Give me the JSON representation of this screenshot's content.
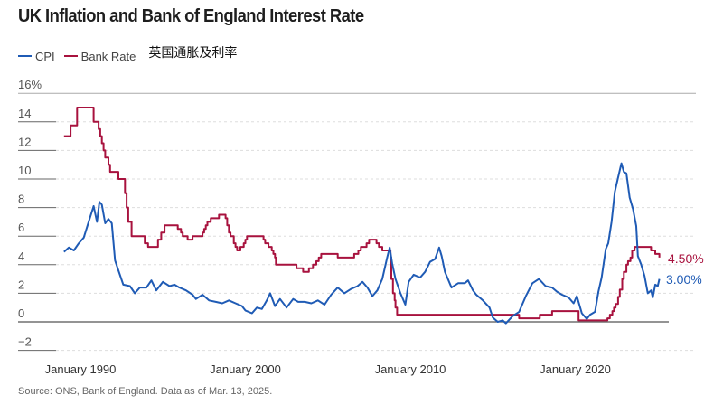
{
  "title": "UK Inflation and Bank of England Interest Rate",
  "legend": {
    "cpi": "CPI",
    "bank_rate": "Bank Rate",
    "subtitle_cn": "英国通胀及利率"
  },
  "source": "Source: ONS, Bank of England. Data as of Mar. 13, 2025.",
  "colors": {
    "cpi": "#1f5bb5",
    "bank_rate": "#a8123e"
  },
  "chart_data": {
    "type": "line",
    "title": "UK Inflation and Bank of England Interest Rate",
    "xlabel": "",
    "ylabel": "%",
    "ylim": [
      -2,
      16
    ],
    "xlim": [
      1988,
      2026.5
    ],
    "y_ticks": [
      {
        "v": 16,
        "label": "16%"
      },
      {
        "v": 14,
        "label": "14"
      },
      {
        "v": 12,
        "label": "12"
      },
      {
        "v": 10,
        "label": "10"
      },
      {
        "v": 8,
        "label": "8"
      },
      {
        "v": 6,
        "label": "6"
      },
      {
        "v": 4,
        "label": "4"
      },
      {
        "v": 2,
        "label": "2"
      },
      {
        "v": 0,
        "label": "0"
      },
      {
        "v": -2,
        "label": "−2"
      }
    ],
    "x_ticks": [
      {
        "v": 1990,
        "label": "January 1990"
      },
      {
        "v": 2000,
        "label": "January 2000"
      },
      {
        "v": 2010,
        "label": "January 2010"
      },
      {
        "v": 2020,
        "label": "January 2020"
      }
    ],
    "grid": true,
    "legend_position": "top-left",
    "end_labels": {
      "bank_rate": "4.50%",
      "cpi": "3.00%"
    },
    "series": [
      {
        "name": "CPI",
        "step": false,
        "points": [
          [
            1989.0,
            4.9
          ],
          [
            1989.3,
            5.2
          ],
          [
            1989.6,
            5.0
          ],
          [
            1989.9,
            5.5
          ],
          [
            1990.2,
            5.9
          ],
          [
            1990.5,
            7.0
          ],
          [
            1990.8,
            8.1
          ],
          [
            1991.0,
            7.0
          ],
          [
            1991.15,
            8.4
          ],
          [
            1991.3,
            8.2
          ],
          [
            1991.5,
            6.9
          ],
          [
            1991.7,
            7.2
          ],
          [
            1991.9,
            6.9
          ],
          [
            1992.1,
            4.3
          ],
          [
            1992.3,
            3.6
          ],
          [
            1992.6,
            2.6
          ],
          [
            1993.0,
            2.5
          ],
          [
            1993.3,
            2.0
          ],
          [
            1993.6,
            2.4
          ],
          [
            1994.0,
            2.4
          ],
          [
            1994.3,
            2.9
          ],
          [
            1994.6,
            2.2
          ],
          [
            1995.0,
            2.8
          ],
          [
            1995.4,
            2.5
          ],
          [
            1995.7,
            2.6
          ],
          [
            1996.0,
            2.4
          ],
          [
            1996.4,
            2.2
          ],
          [
            1996.8,
            1.9
          ],
          [
            1997.0,
            1.6
          ],
          [
            1997.4,
            1.9
          ],
          [
            1997.8,
            1.5
          ],
          [
            1998.2,
            1.4
          ],
          [
            1998.6,
            1.3
          ],
          [
            1999.0,
            1.5
          ],
          [
            1999.4,
            1.3
          ],
          [
            1999.8,
            1.1
          ],
          [
            2000.0,
            0.8
          ],
          [
            2000.4,
            0.6
          ],
          [
            2000.7,
            1.0
          ],
          [
            2001.0,
            0.9
          ],
          [
            2001.3,
            1.5
          ],
          [
            2001.5,
            2.0
          ],
          [
            2001.8,
            1.1
          ],
          [
            2002.1,
            1.6
          ],
          [
            2002.5,
            1.0
          ],
          [
            2002.9,
            1.6
          ],
          [
            2003.2,
            1.4
          ],
          [
            2003.6,
            1.4
          ],
          [
            2004.0,
            1.3
          ],
          [
            2004.4,
            1.5
          ],
          [
            2004.8,
            1.2
          ],
          [
            2005.2,
            1.9
          ],
          [
            2005.6,
            2.4
          ],
          [
            2006.0,
            2.0
          ],
          [
            2006.4,
            2.3
          ],
          [
            2006.8,
            2.5
          ],
          [
            2007.1,
            2.8
          ],
          [
            2007.4,
            2.4
          ],
          [
            2007.7,
            1.8
          ],
          [
            2008.0,
            2.2
          ],
          [
            2008.3,
            3.0
          ],
          [
            2008.6,
            4.5
          ],
          [
            2008.75,
            5.2
          ],
          [
            2008.9,
            4.1
          ],
          [
            2009.1,
            3.0
          ],
          [
            2009.4,
            2.0
          ],
          [
            2009.7,
            1.2
          ],
          [
            2009.9,
            2.8
          ],
          [
            2010.2,
            3.3
          ],
          [
            2010.6,
            3.1
          ],
          [
            2010.9,
            3.5
          ],
          [
            2011.2,
            4.2
          ],
          [
            2011.5,
            4.4
          ],
          [
            2011.75,
            5.2
          ],
          [
            2011.9,
            4.6
          ],
          [
            2012.1,
            3.5
          ],
          [
            2012.5,
            2.4
          ],
          [
            2012.9,
            2.7
          ],
          [
            2013.3,
            2.7
          ],
          [
            2013.5,
            2.9
          ],
          [
            2013.8,
            2.2
          ],
          [
            2014.0,
            1.9
          ],
          [
            2014.4,
            1.5
          ],
          [
            2014.8,
            1.0
          ],
          [
            2015.0,
            0.3
          ],
          [
            2015.3,
            0.0
          ],
          [
            2015.6,
            0.1
          ],
          [
            2015.8,
            -0.1
          ],
          [
            2016.2,
            0.4
          ],
          [
            2016.6,
            0.7
          ],
          [
            2017.0,
            1.8
          ],
          [
            2017.4,
            2.7
          ],
          [
            2017.8,
            3.0
          ],
          [
            2018.2,
            2.5
          ],
          [
            2018.6,
            2.4
          ],
          [
            2018.9,
            2.1
          ],
          [
            2019.2,
            1.9
          ],
          [
            2019.6,
            1.7
          ],
          [
            2019.9,
            1.3
          ],
          [
            2020.1,
            1.8
          ],
          [
            2020.4,
            0.6
          ],
          [
            2020.7,
            0.2
          ],
          [
            2020.9,
            0.5
          ],
          [
            2021.2,
            0.7
          ],
          [
            2021.4,
            2.1
          ],
          [
            2021.6,
            3.1
          ],
          [
            2021.85,
            5.1
          ],
          [
            2022.0,
            5.5
          ],
          [
            2022.2,
            7.0
          ],
          [
            2022.4,
            9.1
          ],
          [
            2022.6,
            10.1
          ],
          [
            2022.8,
            11.1
          ],
          [
            2022.95,
            10.5
          ],
          [
            2023.1,
            10.4
          ],
          [
            2023.3,
            8.7
          ],
          [
            2023.5,
            7.9
          ],
          [
            2023.7,
            6.7
          ],
          [
            2023.8,
            4.6
          ],
          [
            2024.0,
            4.0
          ],
          [
            2024.2,
            3.2
          ],
          [
            2024.4,
            2.0
          ],
          [
            2024.6,
            2.2
          ],
          [
            2024.7,
            1.7
          ],
          [
            2024.85,
            2.6
          ],
          [
            2025.0,
            2.5
          ],
          [
            2025.1,
            3.0
          ]
        ]
      },
      {
        "name": "Bank Rate",
        "step": true,
        "points": [
          [
            1989.0,
            13.0
          ],
          [
            1989.4,
            13.75
          ],
          [
            1989.8,
            15.0
          ],
          [
            1990.8,
            14.0
          ],
          [
            1991.1,
            13.5
          ],
          [
            1991.2,
            13.0
          ],
          [
            1991.3,
            12.5
          ],
          [
            1991.4,
            12.0
          ],
          [
            1991.5,
            11.5
          ],
          [
            1991.7,
            11.0
          ],
          [
            1991.8,
            10.5
          ],
          [
            1992.3,
            10.0
          ],
          [
            1992.7,
            9.0
          ],
          [
            1992.8,
            8.0
          ],
          [
            1992.9,
            7.0
          ],
          [
            1993.1,
            6.0
          ],
          [
            1993.9,
            5.5
          ],
          [
            1994.1,
            5.25
          ],
          [
            1994.7,
            5.75
          ],
          [
            1994.9,
            6.25
          ],
          [
            1995.1,
            6.75
          ],
          [
            1995.9,
            6.5
          ],
          [
            1996.1,
            6.25
          ],
          [
            1996.2,
            6.0
          ],
          [
            1996.5,
            5.75
          ],
          [
            1996.8,
            6.0
          ],
          [
            1997.4,
            6.25
          ],
          [
            1997.5,
            6.5
          ],
          [
            1997.6,
            6.75
          ],
          [
            1997.7,
            7.0
          ],
          [
            1997.9,
            7.25
          ],
          [
            1998.4,
            7.5
          ],
          [
            1998.8,
            7.25
          ],
          [
            1998.9,
            6.75
          ],
          [
            1999.0,
            6.25
          ],
          [
            1999.1,
            6.0
          ],
          [
            1999.3,
            5.5
          ],
          [
            1999.4,
            5.25
          ],
          [
            1999.5,
            5.0
          ],
          [
            1999.7,
            5.25
          ],
          [
            1999.9,
            5.5
          ],
          [
            2000.0,
            5.75
          ],
          [
            2000.1,
            6.0
          ],
          [
            2001.1,
            5.75
          ],
          [
            2001.2,
            5.5
          ],
          [
            2001.4,
            5.25
          ],
          [
            2001.6,
            5.0
          ],
          [
            2001.7,
            4.75
          ],
          [
            2001.8,
            4.5
          ],
          [
            2001.85,
            4.0
          ],
          [
            2003.1,
            3.75
          ],
          [
            2003.5,
            3.5
          ],
          [
            2003.85,
            3.75
          ],
          [
            2004.1,
            4.0
          ],
          [
            2004.3,
            4.25
          ],
          [
            2004.45,
            4.5
          ],
          [
            2004.6,
            4.75
          ],
          [
            2005.6,
            4.5
          ],
          [
            2006.6,
            4.75
          ],
          [
            2006.85,
            5.0
          ],
          [
            2007.0,
            5.25
          ],
          [
            2007.35,
            5.5
          ],
          [
            2007.5,
            5.75
          ],
          [
            2007.95,
            5.5
          ],
          [
            2008.1,
            5.25
          ],
          [
            2008.3,
            5.0
          ],
          [
            2008.8,
            4.5
          ],
          [
            2008.85,
            3.0
          ],
          [
            2008.95,
            2.0
          ],
          [
            2009.05,
            1.5
          ],
          [
            2009.1,
            1.0
          ],
          [
            2009.2,
            0.5
          ],
          [
            2016.6,
            0.25
          ],
          [
            2017.85,
            0.5
          ],
          [
            2018.6,
            0.75
          ],
          [
            2020.2,
            0.1
          ],
          [
            2021.95,
            0.25
          ],
          [
            2022.1,
            0.5
          ],
          [
            2022.25,
            0.75
          ],
          [
            2022.35,
            1.0
          ],
          [
            2022.45,
            1.25
          ],
          [
            2022.6,
            1.75
          ],
          [
            2022.7,
            2.25
          ],
          [
            2022.85,
            3.0
          ],
          [
            2022.95,
            3.5
          ],
          [
            2023.1,
            4.0
          ],
          [
            2023.2,
            4.25
          ],
          [
            2023.35,
            4.5
          ],
          [
            2023.45,
            5.0
          ],
          [
            2023.6,
            5.25
          ],
          [
            2024.6,
            5.0
          ],
          [
            2024.85,
            4.75
          ],
          [
            2025.1,
            4.5
          ]
        ]
      }
    ]
  }
}
